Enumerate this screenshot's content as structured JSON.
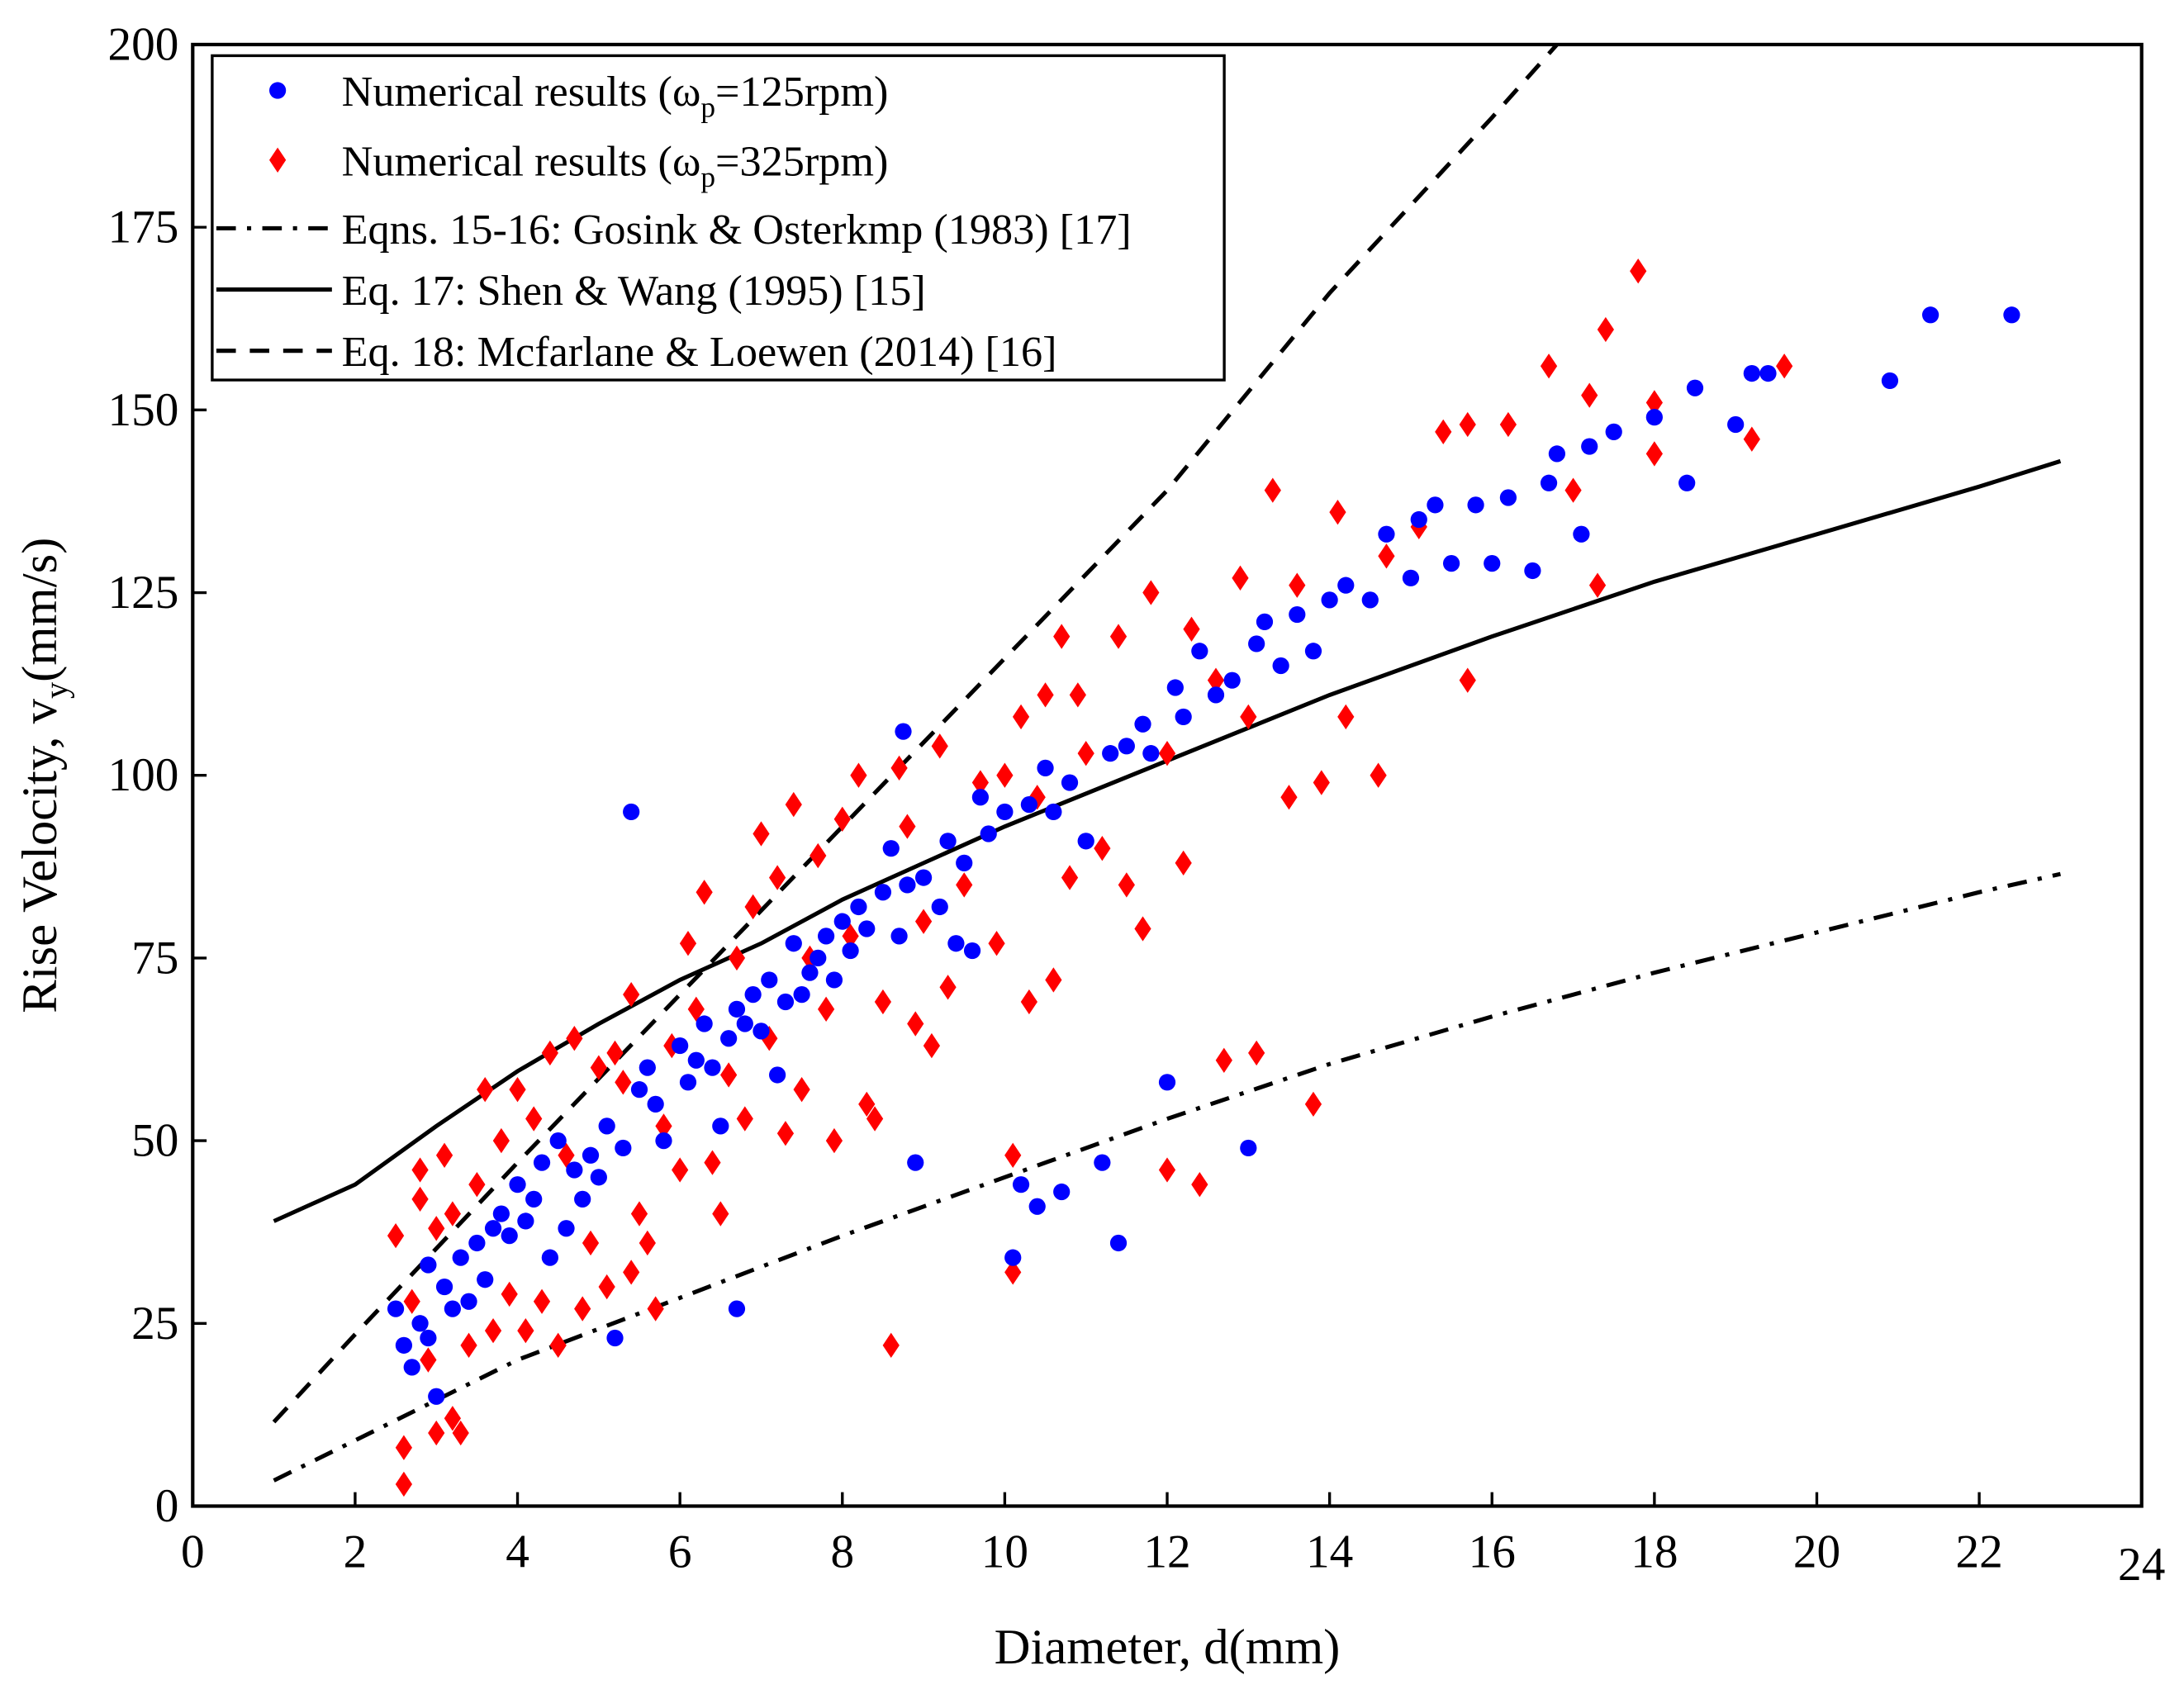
{
  "chart_data": {
    "type": "scatter",
    "xlabel": "Diameter, d(mm)",
    "ylabel_main": "Rise Velocity, v",
    "ylabel_sub": "y",
    "ylabel_unit": "(mm/s)",
    "xlim": [
      0,
      24
    ],
    "ylim": [
      0,
      200
    ],
    "xticks": [
      "0",
      "2",
      "4",
      "6",
      "8",
      "10",
      "12",
      "14",
      "16",
      "18",
      "20",
      "22",
      "24"
    ],
    "yticks": [
      "0",
      "25",
      "50",
      "75",
      "100",
      "125",
      "150",
      "175",
      "200"
    ],
    "grid": false,
    "legend_position": "top-left",
    "legend": [
      {
        "main": "Numerical results (ω",
        "sub": "p",
        "tail": "=125rpm)"
      },
      {
        "main": "Numerical results (ω",
        "sub": "p",
        "tail": "=325rpm)"
      },
      {
        "main": "Eqns. 15-16: Gosink & Osterkmp (1983) [17]"
      },
      {
        "main": "Eq. 17: Shen & Wang (1995) [15]"
      },
      {
        "main": "Eq. 18: Mcfarlane & Loewen (2014) [16]"
      }
    ],
    "colors": {
      "blue": "#0000ff",
      "red": "#ff0000",
      "line": "#000000"
    },
    "scatter_series": [
      {
        "name": "Numerical results (ωp=125rpm)",
        "marker": "circle",
        "color": "#0000ff",
        "points": [
          [
            2.5,
            27
          ],
          [
            2.6,
            22
          ],
          [
            2.7,
            19
          ],
          [
            2.8,
            25
          ],
          [
            2.9,
            23
          ],
          [
            3.0,
            15
          ],
          [
            2.9,
            33
          ],
          [
            3.1,
            30
          ],
          [
            3.2,
            27
          ],
          [
            3.3,
            34
          ],
          [
            3.4,
            28
          ],
          [
            3.5,
            36
          ],
          [
            3.6,
            31
          ],
          [
            3.7,
            38
          ],
          [
            3.8,
            40
          ],
          [
            3.9,
            37
          ],
          [
            4.0,
            44
          ],
          [
            4.1,
            39
          ],
          [
            4.2,
            42
          ],
          [
            4.3,
            47
          ],
          [
            4.4,
            34
          ],
          [
            4.5,
            50
          ],
          [
            4.6,
            38
          ],
          [
            4.7,
            46
          ],
          [
            4.8,
            42
          ],
          [
            4.9,
            48
          ],
          [
            5.0,
            45
          ],
          [
            5.1,
            52
          ],
          [
            5.2,
            23
          ],
          [
            5.3,
            49
          ],
          [
            5.4,
            95
          ],
          [
            5.5,
            57
          ],
          [
            5.6,
            60
          ],
          [
            5.7,
            55
          ],
          [
            5.8,
            50
          ],
          [
            6.0,
            63
          ],
          [
            6.1,
            58
          ],
          [
            6.2,
            61
          ],
          [
            6.3,
            66
          ],
          [
            6.4,
            60
          ],
          [
            6.5,
            52
          ],
          [
            6.6,
            64
          ],
          [
            6.7,
            68
          ],
          [
            6.7,
            27
          ],
          [
            6.8,
            66
          ],
          [
            6.9,
            70
          ],
          [
            7.0,
            65
          ],
          [
            7.1,
            72
          ],
          [
            7.2,
            59
          ],
          [
            7.3,
            69
          ],
          [
            7.4,
            77
          ],
          [
            7.5,
            70
          ],
          [
            7.6,
            73
          ],
          [
            7.7,
            75
          ],
          [
            7.8,
            78
          ],
          [
            7.9,
            72
          ],
          [
            8.0,
            80
          ],
          [
            8.1,
            76
          ],
          [
            8.2,
            82
          ],
          [
            8.3,
            79
          ],
          [
            8.5,
            84
          ],
          [
            8.6,
            90
          ],
          [
            8.7,
            78
          ],
          [
            8.75,
            106
          ],
          [
            8.8,
            85
          ],
          [
            8.9,
            47
          ],
          [
            9.0,
            86
          ],
          [
            9.2,
            82
          ],
          [
            9.3,
            91
          ],
          [
            9.4,
            77
          ],
          [
            9.5,
            88
          ],
          [
            9.6,
            76
          ],
          [
            9.7,
            97
          ],
          [
            9.8,
            92
          ],
          [
            10.0,
            95
          ],
          [
            10.1,
            34
          ],
          [
            10.2,
            44
          ],
          [
            10.3,
            96
          ],
          [
            10.4,
            41
          ],
          [
            10.5,
            101
          ],
          [
            10.6,
            95
          ],
          [
            10.7,
            43
          ],
          [
            10.8,
            99
          ],
          [
            11.0,
            91
          ],
          [
            11.2,
            47
          ],
          [
            11.3,
            103
          ],
          [
            11.4,
            36
          ],
          [
            11.5,
            104
          ],
          [
            11.7,
            107
          ],
          [
            11.8,
            103
          ],
          [
            12.0,
            58
          ],
          [
            12.1,
            112
          ],
          [
            12.2,
            108
          ],
          [
            12.4,
            117
          ],
          [
            12.6,
            111
          ],
          [
            12.8,
            113
          ],
          [
            13.0,
            49
          ],
          [
            13.1,
            118
          ],
          [
            13.2,
            121
          ],
          [
            13.4,
            115
          ],
          [
            13.6,
            122
          ],
          [
            13.8,
            117
          ],
          [
            14.0,
            124
          ],
          [
            14.2,
            126
          ],
          [
            14.5,
            124
          ],
          [
            14.7,
            133
          ],
          [
            15.0,
            127
          ],
          [
            15.1,
            135
          ],
          [
            15.3,
            137
          ],
          [
            15.5,
            129
          ],
          [
            15.8,
            137
          ],
          [
            16.0,
            129
          ],
          [
            16.2,
            138
          ],
          [
            16.5,
            128
          ],
          [
            16.7,
            140
          ],
          [
            16.8,
            144
          ],
          [
            17.1,
            133
          ],
          [
            17.2,
            145
          ],
          [
            17.5,
            147
          ],
          [
            18.0,
            149
          ],
          [
            18.4,
            140
          ],
          [
            18.5,
            153
          ],
          [
            19.0,
            148
          ],
          [
            19.2,
            155
          ],
          [
            19.4,
            155
          ],
          [
            20.9,
            154
          ],
          [
            21.4,
            163
          ],
          [
            22.4,
            163
          ]
        ]
      },
      {
        "name": "Numerical results (ωp=325rpm)",
        "marker": "diamond",
        "color": "#ff0000",
        "points": [
          [
            2.5,
            37
          ],
          [
            2.6,
            8
          ],
          [
            2.6,
            3
          ],
          [
            2.7,
            28
          ],
          [
            2.8,
            46
          ],
          [
            2.8,
            42
          ],
          [
            2.9,
            20
          ],
          [
            3.0,
            10
          ],
          [
            3.0,
            38
          ],
          [
            3.1,
            48
          ],
          [
            3.2,
            12
          ],
          [
            3.3,
            10
          ],
          [
            3.2,
            40
          ],
          [
            3.4,
            22
          ],
          [
            3.5,
            44
          ],
          [
            3.6,
            57
          ],
          [
            3.7,
            24
          ],
          [
            3.8,
            50
          ],
          [
            3.9,
            29
          ],
          [
            4.0,
            57
          ],
          [
            4.1,
            24
          ],
          [
            4.2,
            53
          ],
          [
            4.3,
            28
          ],
          [
            4.4,
            62
          ],
          [
            4.5,
            22
          ],
          [
            4.6,
            48
          ],
          [
            4.7,
            64
          ],
          [
            4.8,
            27
          ],
          [
            4.9,
            36
          ],
          [
            5.0,
            60
          ],
          [
            5.1,
            30
          ],
          [
            5.2,
            62
          ],
          [
            5.3,
            58
          ],
          [
            5.4,
            32
          ],
          [
            5.4,
            70
          ],
          [
            5.5,
            40
          ],
          [
            5.6,
            36
          ],
          [
            5.7,
            27
          ],
          [
            5.8,
            52
          ],
          [
            5.9,
            63
          ],
          [
            6.0,
            46
          ],
          [
            6.1,
            77
          ],
          [
            6.2,
            68
          ],
          [
            6.3,
            84
          ],
          [
            6.4,
            47
          ],
          [
            6.5,
            40
          ],
          [
            6.6,
            59
          ],
          [
            6.7,
            75
          ],
          [
            6.8,
            53
          ],
          [
            6.9,
            82
          ],
          [
            7.0,
            92
          ],
          [
            7.1,
            64
          ],
          [
            7.2,
            86
          ],
          [
            7.3,
            51
          ],
          [
            7.4,
            96
          ],
          [
            7.5,
            57
          ],
          [
            7.6,
            75
          ],
          [
            7.7,
            89
          ],
          [
            7.8,
            68
          ],
          [
            7.9,
            50
          ],
          [
            8.0,
            94
          ],
          [
            8.1,
            78
          ],
          [
            8.2,
            100
          ],
          [
            8.3,
            55
          ],
          [
            8.4,
            53
          ],
          [
            8.5,
            69
          ],
          [
            8.6,
            22
          ],
          [
            8.7,
            101
          ],
          [
            8.8,
            93
          ],
          [
            8.9,
            66
          ],
          [
            9.0,
            80
          ],
          [
            9.1,
            63
          ],
          [
            9.2,
            104
          ],
          [
            9.3,
            71
          ],
          [
            9.5,
            85
          ],
          [
            9.7,
            99
          ],
          [
            9.9,
            77
          ],
          [
            10.0,
            100
          ],
          [
            10.1,
            32
          ],
          [
            10.1,
            48
          ],
          [
            10.2,
            108
          ],
          [
            10.3,
            69
          ],
          [
            10.4,
            97
          ],
          [
            10.5,
            111
          ],
          [
            10.6,
            72
          ],
          [
            10.7,
            119
          ],
          [
            10.8,
            86
          ],
          [
            10.9,
            111
          ],
          [
            11.0,
            103
          ],
          [
            11.2,
            90
          ],
          [
            11.4,
            119
          ],
          [
            11.5,
            85
          ],
          [
            11.7,
            79
          ],
          [
            11.8,
            125
          ],
          [
            12.0,
            103
          ],
          [
            12.0,
            46
          ],
          [
            12.2,
            88
          ],
          [
            12.3,
            120
          ],
          [
            12.4,
            44
          ],
          [
            12.6,
            113
          ],
          [
            12.7,
            61
          ],
          [
            12.9,
            127
          ],
          [
            13.0,
            108
          ],
          [
            13.1,
            62
          ],
          [
            13.3,
            139
          ],
          [
            13.5,
            97
          ],
          [
            13.6,
            126
          ],
          [
            13.8,
            55
          ],
          [
            13.9,
            99
          ],
          [
            14.1,
            136
          ],
          [
            14.2,
            108
          ],
          [
            14.6,
            100
          ],
          [
            14.7,
            130
          ],
          [
            15.1,
            134
          ],
          [
            15.4,
            147
          ],
          [
            15.7,
            148
          ],
          [
            15.7,
            113
          ],
          [
            16.2,
            148
          ],
          [
            16.7,
            156
          ],
          [
            17.0,
            139
          ],
          [
            17.2,
            152
          ],
          [
            17.3,
            126
          ],
          [
            17.4,
            161
          ],
          [
            17.8,
            169
          ],
          [
            18.0,
            151
          ],
          [
            18.0,
            144
          ],
          [
            19.2,
            146
          ],
          [
            19.6,
            156
          ]
        ]
      }
    ],
    "line_series": [
      {
        "name": "Eqns. 15-16: Gosink & Osterkmp (1983) [17]",
        "style": "dashdot",
        "points": [
          [
            1,
            3.5
          ],
          [
            2,
            9
          ],
          [
            4,
            20
          ],
          [
            6,
            28.5
          ],
          [
            8,
            37
          ],
          [
            10,
            45
          ],
          [
            12,
            53
          ],
          [
            14,
            60.5
          ],
          [
            16,
            67
          ],
          [
            18,
            73
          ],
          [
            20,
            78.5
          ],
          [
            22,
            84
          ],
          [
            23,
            86.5
          ]
        ]
      },
      {
        "name": "Eq. 17: Shen & Wang (1995) [15]",
        "style": "solid",
        "points": [
          [
            1,
            39
          ],
          [
            2,
            44
          ],
          [
            3,
            52
          ],
          [
            4,
            59.5
          ],
          [
            5,
            66
          ],
          [
            6,
            72
          ],
          [
            7,
            77
          ],
          [
            8,
            83
          ],
          [
            9,
            88
          ],
          [
            10,
            93
          ],
          [
            12,
            102
          ],
          [
            14,
            111
          ],
          [
            16,
            119
          ],
          [
            18,
            126.5
          ],
          [
            20,
            133
          ],
          [
            22,
            139.5
          ],
          [
            23,
            143
          ]
        ]
      },
      {
        "name": "Eq. 18: Mcfarlane & Loewen (2014) [16]",
        "style": "dashed",
        "points": [
          [
            1,
            11.5
          ],
          [
            2,
            23.5
          ],
          [
            4,
            47
          ],
          [
            6,
            70
          ],
          [
            8,
            93
          ],
          [
            10,
            116
          ],
          [
            12,
            139
          ],
          [
            14,
            166
          ],
          [
            16,
            190
          ],
          [
            16.8,
            200
          ]
        ]
      }
    ]
  }
}
